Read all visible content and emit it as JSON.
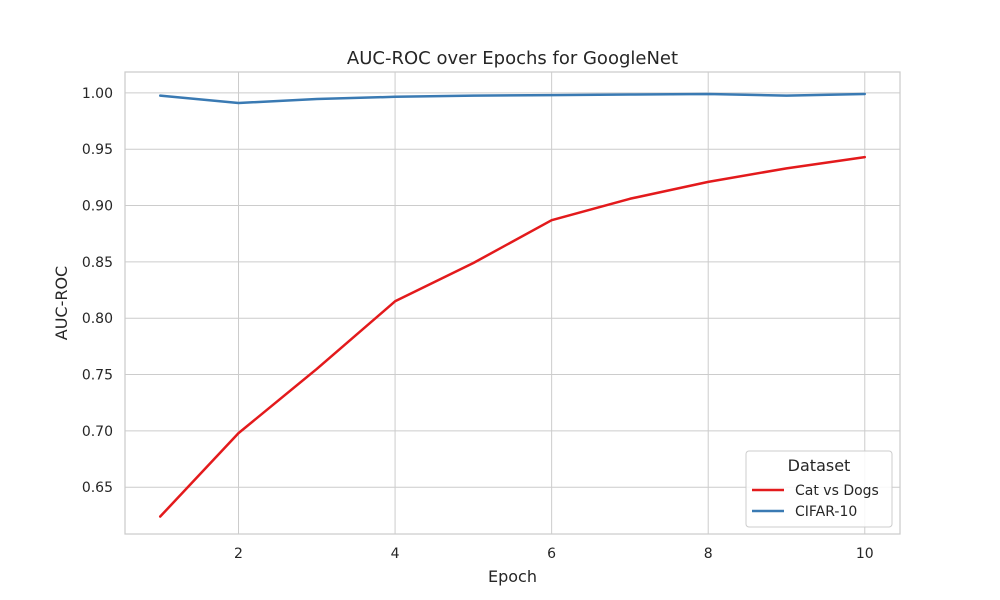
{
  "chart_data": {
    "type": "line",
    "title": "AUC-ROC over Epochs for GoogleNet",
    "xlabel": "Epoch",
    "ylabel": "AUC-ROC",
    "x": [
      1,
      2,
      3,
      4,
      5,
      6,
      7,
      8,
      9,
      10
    ],
    "xlim": [
      0.55,
      10.45
    ],
    "ylim": [
      0.6085,
      1.0185
    ],
    "xticks": [
      2,
      4,
      6,
      8,
      10
    ],
    "xtick_labels": [
      "2",
      "4",
      "6",
      "8",
      "10"
    ],
    "yticks": [
      0.65,
      0.7,
      0.75,
      0.8,
      0.85,
      0.9,
      0.95,
      1.0
    ],
    "ytick_labels": [
      "0.65",
      "0.70",
      "0.75",
      "0.80",
      "0.85",
      "0.90",
      "0.95",
      "1.00"
    ],
    "grid": true,
    "legend": {
      "title": "Dataset",
      "placement": "lower-right"
    },
    "series": [
      {
        "name": "Cat vs Dogs",
        "color": "#e31a1c",
        "values": [
          0.624,
          0.698,
          0.755,
          0.815,
          0.849,
          0.887,
          0.906,
          0.921,
          0.933,
          0.943
        ]
      },
      {
        "name": "CIFAR-10",
        "color": "#3a7ab3",
        "values": [
          0.9975,
          0.991,
          0.9945,
          0.9965,
          0.9975,
          0.998,
          0.9985,
          0.999,
          0.9975,
          0.999
        ]
      }
    ]
  }
}
